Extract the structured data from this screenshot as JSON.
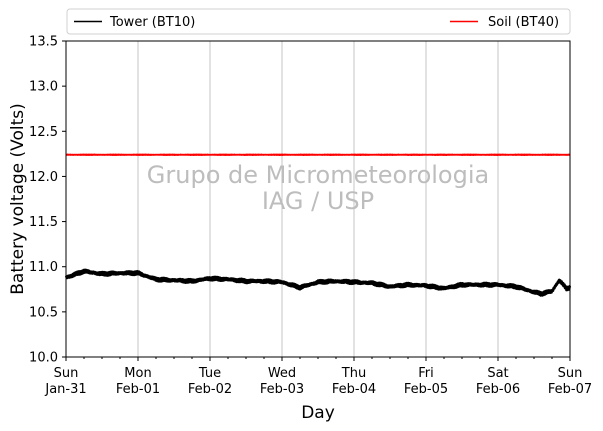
{
  "chart_data": {
    "type": "line",
    "xlabel": "Day",
    "ylabel": "Battery voltage (Volts)",
    "ylim": [
      10.0,
      13.5
    ],
    "yticks": [
      10.0,
      10.5,
      11.0,
      11.5,
      12.0,
      12.5,
      13.0,
      13.5
    ],
    "ytick_labels": [
      "10.0",
      "10.5",
      "11.0",
      "11.5",
      "12.0",
      "12.5",
      "13.0",
      "13.5"
    ],
    "xlim": [
      "2021-01-31",
      "2021-02-07"
    ],
    "xticks": [
      {
        "day": "Sun",
        "date": "Jan-31"
      },
      {
        "day": "Mon",
        "date": "Feb-01"
      },
      {
        "day": "Tue",
        "date": "Feb-02"
      },
      {
        "day": "Wed",
        "date": "Feb-03"
      },
      {
        "day": "Thu",
        "date": "Feb-04"
      },
      {
        "day": "Fri",
        "date": "Feb-05"
      },
      {
        "day": "Sat",
        "date": "Feb-06"
      },
      {
        "day": "Sun",
        "date": "Feb-07"
      }
    ],
    "grid": "vertical",
    "legend_placement": "top, outside plot",
    "watermark": [
      "Grupo de Micrometeorologia",
      "IAG / USP"
    ],
    "series": [
      {
        "name": "Tower (BT10)",
        "color": "#000000",
        "x_days": [
          0,
          0.25,
          0.5,
          0.75,
          1.0,
          1.25,
          1.5,
          1.75,
          2.0,
          2.25,
          2.5,
          2.75,
          3.0,
          3.25,
          3.5,
          3.75,
          4.0,
          4.25,
          4.5,
          4.75,
          5.0,
          5.25,
          5.5,
          5.75,
          6.0,
          6.25,
          6.5,
          6.6,
          6.75,
          6.85,
          6.95,
          7.0
        ],
        "y": [
          10.88,
          10.95,
          10.92,
          10.93,
          10.93,
          10.86,
          10.85,
          10.84,
          10.87,
          10.86,
          10.84,
          10.84,
          10.83,
          10.77,
          10.83,
          10.84,
          10.83,
          10.82,
          10.78,
          10.8,
          10.79,
          10.76,
          10.8,
          10.8,
          10.8,
          10.78,
          10.72,
          10.7,
          10.73,
          10.85,
          10.76,
          10.77
        ]
      },
      {
        "name": "Soil (BT40)",
        "color": "#ff0000",
        "x_days": [
          0,
          1,
          2,
          3,
          4,
          5,
          6,
          7
        ],
        "y": [
          12.24,
          12.24,
          12.24,
          12.24,
          12.24,
          12.24,
          12.24,
          12.24
        ]
      }
    ]
  }
}
